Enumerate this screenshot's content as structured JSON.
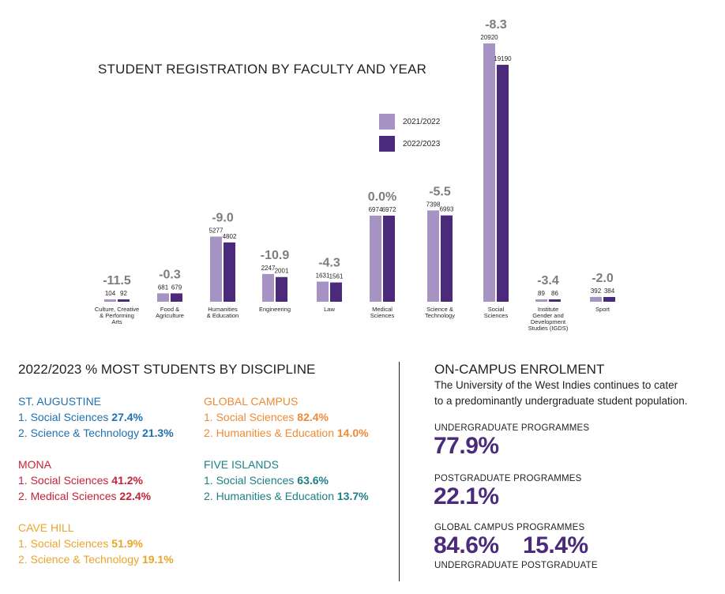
{
  "colors": {
    "y2021": "#a693c3",
    "y2022": "#4b2a7b",
    "change": "#7d7d7d",
    "blue": "#1f70ad",
    "red": "#c42236",
    "yellow": "#e9a529",
    "orange": "#ee8a35",
    "teal": "#1b7f86"
  },
  "chart_data": {
    "type": "bar",
    "title": "STUDENT  REGISTRATION BY FACULTY AND YEAR",
    "legend_position": "top-center",
    "categories": [
      [
        "Culture, Creative",
        "& Performing",
        "Arts"
      ],
      [
        "Food &",
        "Agriculture"
      ],
      [
        "Humanities",
        "& Education"
      ],
      [
        "Engineering"
      ],
      [
        "Law"
      ],
      [
        "Medical",
        "Sciences"
      ],
      [
        "Science &",
        "Technology"
      ],
      [
        "Social",
        "Sciences"
      ],
      [
        "Institute",
        "Gender and",
        "Development",
        "Studies (IGDS)"
      ],
      [
        "Sport"
      ]
    ],
    "series": [
      {
        "name": "2021/2022",
        "values": [
          104,
          681,
          5277,
          2247,
          1631,
          6974,
          7398,
          20920,
          89,
          392
        ]
      },
      {
        "name": "2022/2023",
        "values": [
          92,
          679,
          4802,
          2001,
          1561,
          6972,
          6993,
          19190,
          86,
          384
        ]
      }
    ],
    "percent_change": [
      "-11.5",
      "-0.3",
      "-9.0",
      "-10.9",
      "-4.3",
      "0.0%",
      "-5.5",
      "-8.3",
      "-3.4",
      "-2.0"
    ]
  },
  "discipline": {
    "title": "2022/2023 % MOST STUDENTS BY DISCIPLINE",
    "campuses": [
      {
        "name": "ST. AUGUSTINE",
        "color": "#1f70ad",
        "items": [
          {
            "label": "1. Social Sciences ",
            "pct": "27.4%"
          },
          {
            "label": "2. Science & Technology ",
            "pct": "21.3%"
          }
        ]
      },
      {
        "name": "MONA",
        "color": "#c42236",
        "items": [
          {
            "label": "1. Social Sciences ",
            "pct": "41.2%"
          },
          {
            "label": "2. Medical Sciences ",
            "pct": "22.4%"
          }
        ]
      },
      {
        "name": "CAVE HILL",
        "color": "#e9a529",
        "items": [
          {
            "label": "1. Social Sciences ",
            "pct": "51.9%"
          },
          {
            "label": "2. Science & Technology ",
            "pct": "19.1%"
          }
        ]
      },
      {
        "name": "GLOBAL CAMPUS",
        "color": "#ee8a35",
        "items": [
          {
            "label": "1. Social Sciences ",
            "pct": "82.4%"
          },
          {
            "label": "2. Humanities & Education ",
            "pct": "14.0%"
          }
        ]
      },
      {
        "name": "FIVE ISLANDS",
        "color": "#1b7f86",
        "items": [
          {
            "label": "1. Social Sciences ",
            "pct": "63.6%"
          },
          {
            "label": "2. Humanities & Education ",
            "pct": "13.7%"
          }
        ]
      }
    ]
  },
  "enrolment": {
    "title": "ON-CAMPUS ENROLMENT",
    "desc_line1": "The University of the West Indies continues to cater",
    "desc_line2": "to a predominantly undergraduate student population.",
    "ug_label": "UNDERGRADUATE PROGRAMMES",
    "ug_value": "77.9%",
    "pg_label": "POSTGRADUATE PROGRAMMES",
    "pg_value": "22.1%",
    "global_label": "GLOBAL CAMPUS PROGRAMMES",
    "global_ug_value": "84.6%",
    "global_pg_value": "15.4%",
    "global_ug_sub": "UNDERGRADUATE",
    "global_pg_sub": "POSTGRADUATE"
  }
}
